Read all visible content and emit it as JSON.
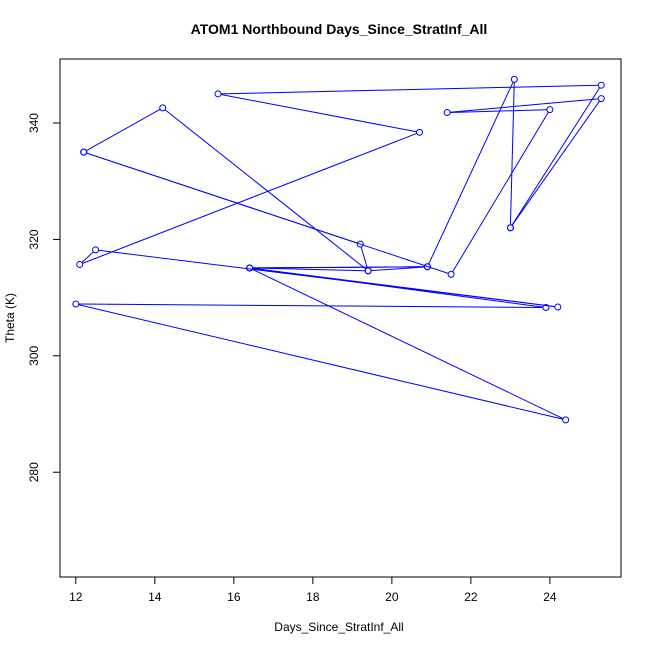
{
  "chart_data": {
    "type": "line",
    "title": "ATOM1 Northbound Days_Since_StratInf_All",
    "xlabel": "Days_Since_StratInf_All",
    "ylabel": "Theta (K)",
    "xlim": [
      11.6,
      25.8
    ],
    "ylim": [
      262,
      351
    ],
    "xticks": [
      12,
      14,
      16,
      18,
      20,
      22,
      24
    ],
    "yticks": [
      280,
      300,
      320,
      340
    ],
    "series_color": "#0000ff",
    "markers": "open-circle",
    "grid": false,
    "legend": "none",
    "points": [
      {
        "x": 12.2,
        "y": 335.0
      },
      {
        "x": 21.5,
        "y": 314.0
      },
      {
        "x": 24.0,
        "y": 342.3
      },
      {
        "x": 21.4,
        "y": 341.8
      },
      {
        "x": 25.3,
        "y": 344.2
      },
      {
        "x": 23.0,
        "y": 322.0
      },
      {
        "x": 25.3,
        "y": 346.5
      },
      {
        "x": 15.6,
        "y": 345.0
      },
      {
        "x": 20.7,
        "y": 338.4
      },
      {
        "x": 12.1,
        "y": 315.7
      },
      {
        "x": 12.5,
        "y": 318.2
      },
      {
        "x": 24.2,
        "y": 308.4
      },
      {
        "x": 16.4,
        "y": 315.1
      },
      {
        "x": 20.9,
        "y": 315.3
      },
      {
        "x": 19.4,
        "y": 314.6
      },
      {
        "x": 14.2,
        "y": 342.6
      },
      {
        "x": 12.2,
        "y": 335.0
      },
      {
        "x": 19.2,
        "y": 319.2
      },
      {
        "x": 19.4,
        "y": 314.6
      },
      {
        "x": 16.4,
        "y": 315.1
      },
      {
        "x": 23.9,
        "y": 308.3
      },
      {
        "x": 12.0,
        "y": 308.9
      },
      {
        "x": 24.4,
        "y": 289.0
      },
      {
        "x": 16.4,
        "y": 315.1
      },
      {
        "x": 20.9,
        "y": 315.3
      },
      {
        "x": 23.1,
        "y": 347.5
      },
      {
        "x": 23.0,
        "y": 322.0
      }
    ]
  }
}
